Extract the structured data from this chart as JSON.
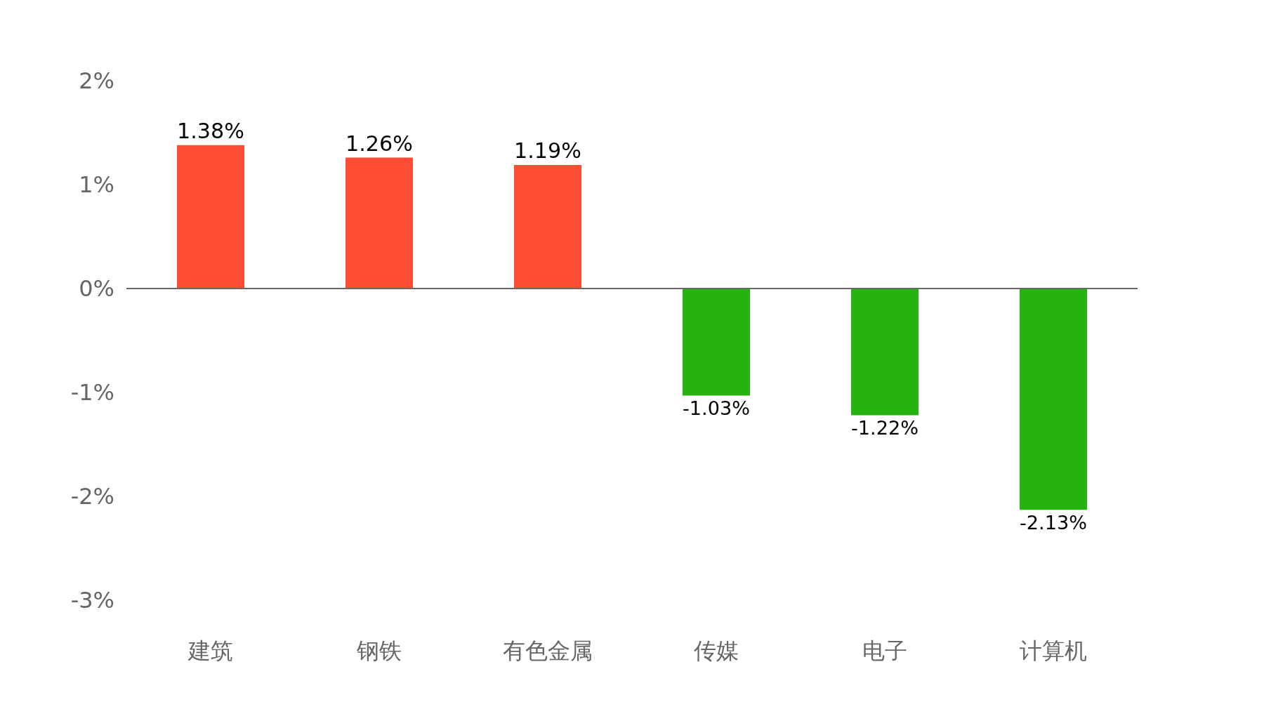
{
  "chart_data": {
    "type": "bar",
    "categories": [
      "建筑",
      "钢铁",
      "有色金属",
      "传媒",
      "电子",
      "计算机"
    ],
    "values": [
      1.38,
      1.26,
      1.19,
      -1.03,
      -1.22,
      -2.13
    ],
    "colors": [
      "#ff4d33",
      "#ff4d33",
      "#ff4d33",
      "#27b30f",
      "#27b30f",
      "#27b30f"
    ],
    "value_labels": [
      "1.38%",
      "1.26%",
      "1.19%",
      "-1.03%",
      "-1.22%",
      "-2.13%"
    ],
    "ylim": [
      -3,
      2
    ],
    "yticks": [
      {
        "value": -3,
        "label": "-3%"
      },
      {
        "value": -2,
        "label": "-2%"
      },
      {
        "value": -1,
        "label": "-1%"
      },
      {
        "value": 0,
        "label": "0%"
      },
      {
        "value": 1,
        "label": "1%"
      },
      {
        "value": 2,
        "label": "2%"
      }
    ],
    "ref_lines": [
      {
        "axis": "y",
        "value": 0,
        "color": "#666666"
      }
    ],
    "grid": false
  }
}
